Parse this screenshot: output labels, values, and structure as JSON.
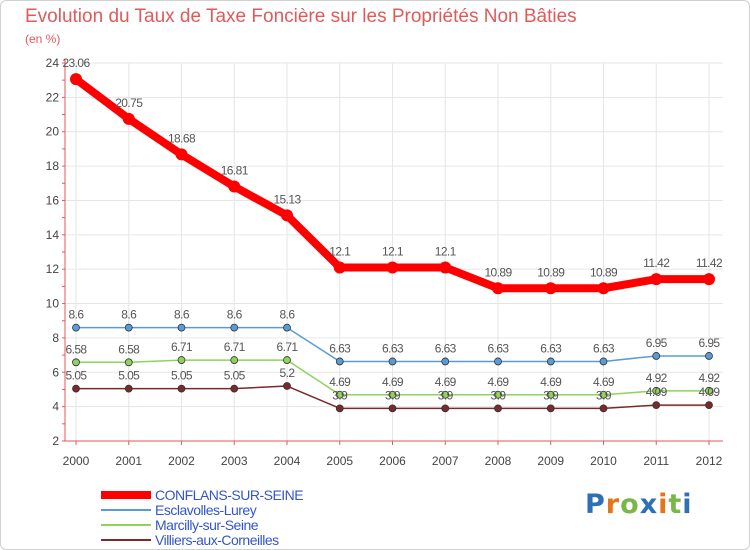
{
  "chart_data": {
    "type": "line",
    "title": "Evolution du Taux de Taxe Foncière sur les Propriétés Non Bâties",
    "ylabel": "(en %)",
    "xlabel": "",
    "ylim": [
      2,
      24
    ],
    "yticks": [
      "2",
      "4",
      "6",
      "8",
      "10",
      "12",
      "14",
      "16",
      "18",
      "20",
      "22",
      "24"
    ],
    "categories": [
      "2000",
      "2001",
      "2002",
      "2003",
      "2004",
      "2005",
      "2006",
      "2007",
      "2008",
      "2009",
      "2010",
      "2011",
      "2012"
    ],
    "series": [
      {
        "name": "CONFLANS-SUR-SEINE",
        "color": "#ff0000",
        "values": [
          23.06,
          20.75,
          18.68,
          16.81,
          15.13,
          12.1,
          12.1,
          12.1,
          10.89,
          10.89,
          10.89,
          11.42,
          11.42
        ],
        "labels": [
          "23.06",
          "20.75",
          "18.68",
          "16.81",
          "15.13",
          "12.1",
          "12.1",
          "12.1",
          "10.89",
          "10.89",
          "10.89",
          "11.42",
          "11.42"
        ]
      },
      {
        "name": "Esclavolles-Lurey",
        "color": "#5b9bd5",
        "values": [
          8.6,
          8.6,
          8.6,
          8.6,
          8.6,
          6.63,
          6.63,
          6.63,
          6.63,
          6.63,
          6.63,
          6.95,
          6.95
        ],
        "labels": [
          "8.6",
          "8.6",
          "8.6",
          "8.6",
          "8.6",
          "6.63",
          "6.63",
          "6.63",
          "6.63",
          "6.63",
          "6.63",
          "6.95",
          "6.95"
        ]
      },
      {
        "name": "Marcilly-sur-Seine",
        "color": "#8fd35a",
        "values": [
          6.58,
          6.58,
          6.71,
          6.71,
          6.71,
          4.69,
          4.69,
          4.69,
          4.69,
          4.69,
          4.69,
          4.92,
          4.92
        ],
        "labels": [
          "6.58",
          "6.58",
          "6.71",
          "6.71",
          "6.71",
          "4.69",
          "4.69",
          "4.69",
          "4.69",
          "4.69",
          "4.69",
          "4.92",
          "4.92"
        ]
      },
      {
        "name": "Villiers-aux-Corneilles",
        "color": "#7a2a2a",
        "values": [
          5.05,
          5.05,
          5.05,
          5.05,
          5.2,
          3.9,
          3.9,
          3.9,
          3.9,
          3.9,
          3.9,
          4.09,
          4.09
        ],
        "labels": [
          "5.05",
          "5.05",
          "5.05",
          "5.05",
          "5.2",
          "3.9",
          "3.9",
          "3.9",
          "3.9",
          "3.9",
          "3.9",
          "4.09",
          "4.09"
        ]
      }
    ],
    "legend_position": "bottom-left"
  },
  "brand": {
    "letters": [
      "P",
      "r",
      "o",
      "x",
      "i",
      "t",
      "i"
    ],
    "colors": [
      "#2f6fb5",
      "#e6751a",
      "#7ab648",
      "#2f6fb5",
      "#e6751a",
      "#7ab648",
      "#2f6fb5"
    ]
  }
}
